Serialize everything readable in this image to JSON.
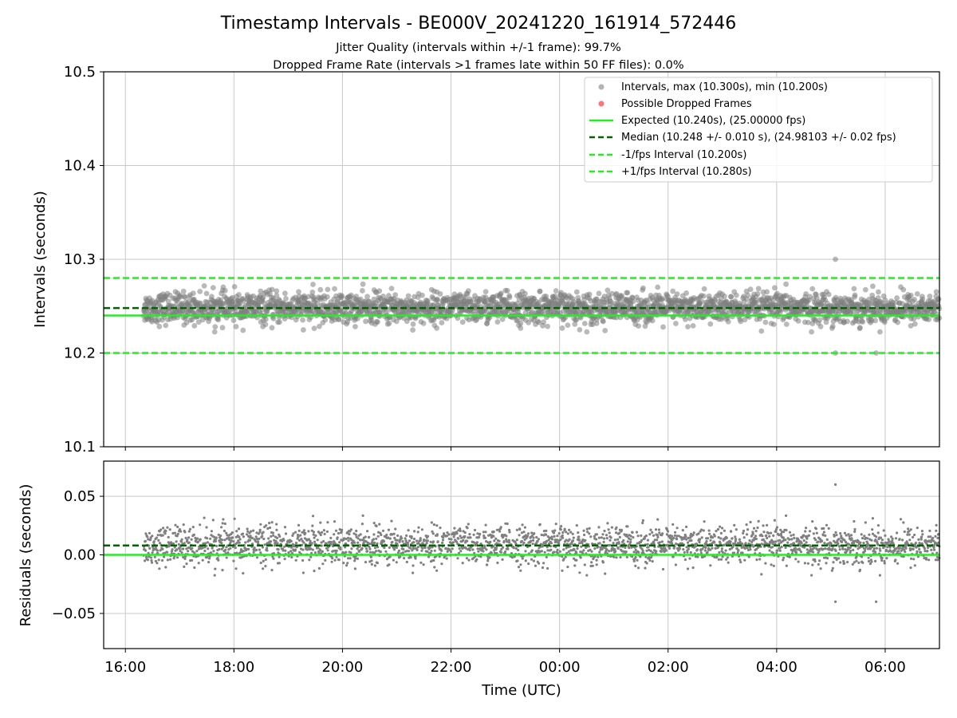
{
  "figure": {
    "title": "Timestamp Intervals - BE000V_20241220_161914_572446",
    "subtitle_jitter": "Jitter Quality (intervals within +/-1 frame): 99.7%",
    "subtitle_dropped": "Dropped Frame Rate (intervals >1 frames late within 50 FF files): 0.0%",
    "xlabel": "Time (UTC)"
  },
  "colors": {
    "points": "#808080",
    "dropped": "#ff4444",
    "expected": "#22ee22",
    "median": "#006400",
    "fps_interval": "#22ee22",
    "grid": "#c8c8c8"
  },
  "chart_data": [
    {
      "type": "scatter",
      "panel": "top",
      "ylabel": "Intervals (seconds)",
      "ylim": [
        10.1,
        10.5
      ],
      "yticks": [
        "10.1",
        "10.2",
        "10.3",
        "10.4",
        "10.5"
      ],
      "xlim": [
        "15:36",
        "07:00"
      ],
      "xticks": [
        "16:00",
        "18:00",
        "20:00",
        "22:00",
        "00:00",
        "02:00",
        "04:00",
        "06:00"
      ],
      "grid": true,
      "legend_position": "upper right",
      "legend": [
        "Intervals, max (10.300s), min (10.200s)",
        "Possible Dropped Frames",
        "Expected (10.240s), (25.00000 fps)",
        "Median (10.248 +/- 0.010 s), (24.98103 +/- 0.02 fps)",
        "-1/fps Interval (10.200s)",
        "+1/fps Interval (10.280s)"
      ],
      "series": [
        {
          "name": "Intervals, max (10.300s), min (10.200s)",
          "style": "scatter",
          "x_range": [
            "16:20",
            "07:00"
          ],
          "y_center": 10.248,
          "y_spread": 0.01,
          "y_max": 10.3,
          "y_min": 10.2
        },
        {
          "name": "Possible Dropped Frames",
          "style": "scatter",
          "points": []
        },
        {
          "name": "Expected (10.240s), (25.00000 fps)",
          "style": "hline",
          "y": 10.24
        },
        {
          "name": "Median (10.248 +/- 0.010 s), (24.98103 +/- 0.02 fps)",
          "style": "hline-dashed",
          "y": 10.248
        },
        {
          "name": "-1/fps Interval (10.200s)",
          "style": "hline-dashed",
          "y": 10.2
        },
        {
          "name": "+1/fps Interval (10.280s)",
          "style": "hline-dashed",
          "y": 10.28
        }
      ]
    },
    {
      "type": "scatter",
      "panel": "bottom",
      "ylabel": "Residuals (seconds)",
      "ylim": [
        -0.08,
        0.08
      ],
      "yticks": [
        "−0.05",
        "0.00",
        "0.05"
      ],
      "ytick_values": [
        -0.05,
        0.0,
        0.05
      ],
      "xticks": [
        "16:00",
        "18:00",
        "20:00",
        "22:00",
        "00:00",
        "02:00",
        "04:00",
        "06:00"
      ],
      "grid": true,
      "series": [
        {
          "name": "Residuals",
          "style": "scatter",
          "y_center": 0.008,
          "y_spread": 0.01,
          "y_max": 0.06,
          "y_min": -0.04
        },
        {
          "name": "Expected",
          "style": "hline",
          "y": 0.0
        },
        {
          "name": "Median",
          "style": "hline-dashed",
          "y": 0.008
        }
      ]
    }
  ]
}
